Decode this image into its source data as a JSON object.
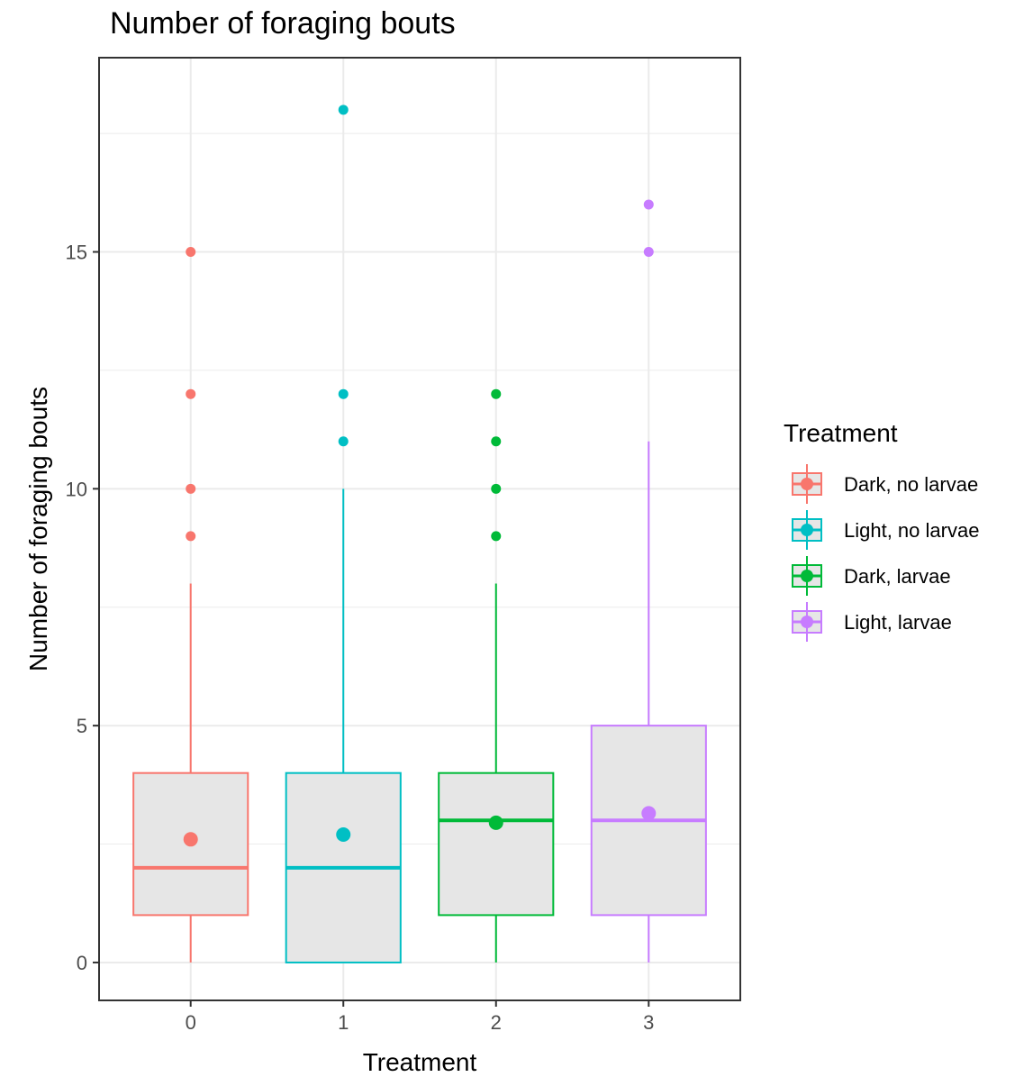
{
  "chart_data": {
    "type": "box",
    "title": "Number of foraging bouts",
    "xlabel": "Treatment",
    "ylabel": "Number of foraging bouts",
    "categories": [
      "0",
      "1",
      "2",
      "3"
    ],
    "yticks": [
      0,
      5,
      10,
      15
    ],
    "ylim": [
      -0.8,
      19.1
    ],
    "xlim": [
      -0.6,
      3.6
    ],
    "grid": true,
    "legend": {
      "title": "Treatment",
      "position": "right",
      "labels": [
        "Dark, no larvae",
        "Light, no larvae",
        "Dark, larvae",
        "Light, larvae"
      ]
    },
    "colors": [
      "#F8766D",
      "#00BFC4",
      "#00BA38",
      "#C77CFF"
    ],
    "box_fill": "#e6e6e6",
    "series": [
      {
        "name": "Dark, no larvae",
        "x": 0,
        "lower_whisker": 0,
        "q1": 1,
        "median": 2,
        "q3": 4,
        "upper_whisker": 8,
        "mean": 2.6,
        "outliers": [
          9,
          10,
          12,
          15
        ]
      },
      {
        "name": "Light, no larvae",
        "x": 1,
        "lower_whisker": 0,
        "q1": 0,
        "median": 2,
        "q3": 4,
        "upper_whisker": 10,
        "mean": 2.7,
        "outliers": [
          11,
          12,
          18
        ]
      },
      {
        "name": "Dark, larvae",
        "x": 2,
        "lower_whisker": 0,
        "q1": 1,
        "median": 3,
        "q3": 4,
        "upper_whisker": 8,
        "mean": 2.95,
        "outliers": [
          9,
          10,
          11,
          12
        ]
      },
      {
        "name": "Light, larvae",
        "x": 3,
        "lower_whisker": 0,
        "q1": 1,
        "median": 3,
        "q3": 5,
        "upper_whisker": 11,
        "mean": 3.15,
        "outliers": [
          15,
          16
        ]
      }
    ]
  }
}
